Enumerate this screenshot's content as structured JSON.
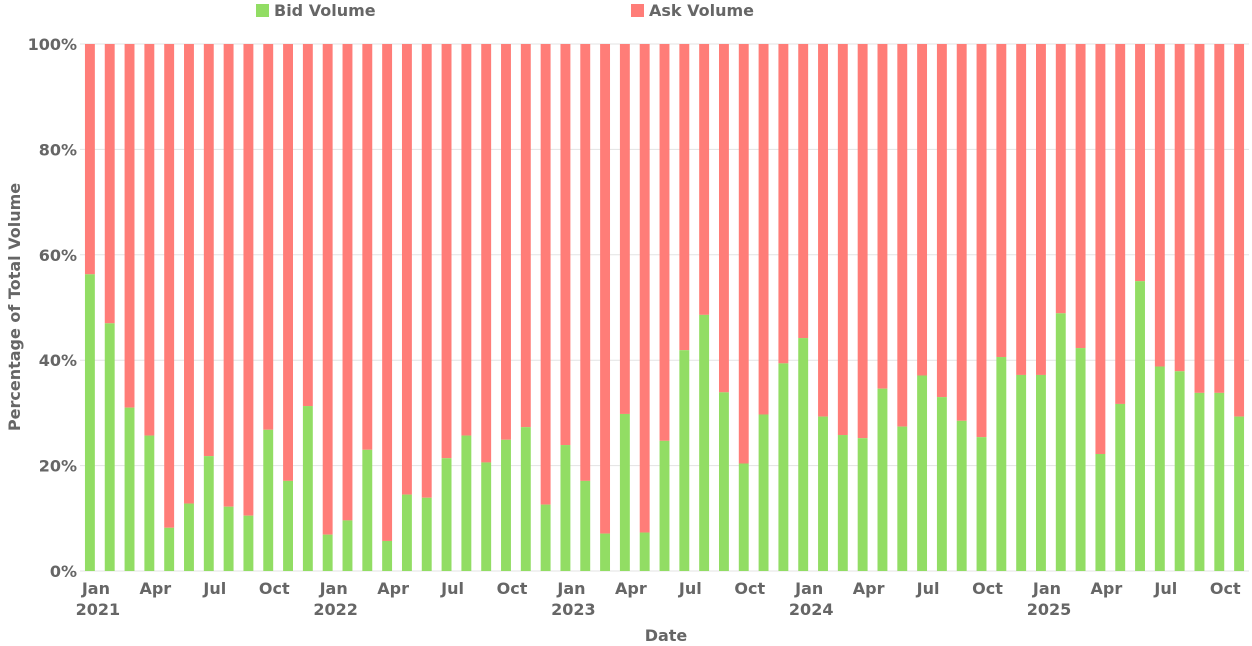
{
  "colors": {
    "bid": "#92dd64",
    "ask": "#ff7d78",
    "grid": "#e3e3e3",
    "text": "#666666"
  },
  "chart_data": {
    "type": "bar",
    "stacked": true,
    "percent": true,
    "title": "",
    "xlabel": "Date",
    "ylabel": "Percentage of Total Volume",
    "ylim": [
      0,
      100
    ],
    "yticks": [
      "0%",
      "20%",
      "40%",
      "60%",
      "80%",
      "100%"
    ],
    "legend": [
      "Bid Volume",
      "Ask Volume"
    ],
    "legend_position": "top",
    "categories": [
      "2021-01",
      "2021-02",
      "2021-03",
      "2021-04",
      "2021-05",
      "2021-06",
      "2021-07",
      "2021-08",
      "2021-09",
      "2021-10",
      "2021-11",
      "2021-12",
      "2022-01",
      "2022-02",
      "2022-03",
      "2022-04",
      "2022-05",
      "2022-06",
      "2022-07",
      "2022-08",
      "2022-09",
      "2022-10",
      "2022-11",
      "2022-12",
      "2023-01",
      "2023-02",
      "2023-03",
      "2023-04",
      "2023-05",
      "2023-06",
      "2023-07",
      "2023-08",
      "2023-09",
      "2023-10",
      "2023-11",
      "2023-12",
      "2024-01",
      "2024-02",
      "2024-03",
      "2024-04",
      "2024-05",
      "2024-06",
      "2024-07",
      "2024-08",
      "2024-09",
      "2024-10",
      "2024-11",
      "2024-12",
      "2025-01",
      "2025-02",
      "2025-03",
      "2025-04",
      "2025-05",
      "2025-06",
      "2025-07",
      "2025-08",
      "2025-09",
      "2025-10",
      "2025-11"
    ],
    "series": [
      {
        "name": "Bid Volume",
        "values": [
          56.3,
          47,
          31,
          25.7,
          8.2,
          12.8,
          21.8,
          12.2,
          10.5,
          26.8,
          17.1,
          31.3,
          6.9,
          9.6,
          23,
          5.7,
          14.5,
          13.9,
          21.4,
          25.7,
          20.6,
          24.9,
          27.3,
          12.6,
          23.9,
          17.1,
          7.1,
          29.8,
          7.3,
          24.7,
          41.9,
          48.6,
          33.9,
          20.4,
          29.7,
          39.4,
          44.2,
          29.3,
          25.8,
          25.2,
          34.6,
          27.4,
          37.1,
          33,
          28.5,
          25.4,
          40.6,
          37.2,
          37.2,
          48.9,
          42.3,
          22.2,
          31.7,
          55,
          38.8,
          37.9,
          33.8,
          33.8,
          29.3
        ]
      },
      {
        "name": "Ask Volume",
        "values": [
          43.7,
          53,
          69,
          74.3,
          91.8,
          87.2,
          78.2,
          87.8,
          89.5,
          73.2,
          82.9,
          68.7,
          93.1,
          90.4,
          77,
          94.3,
          85.5,
          86.1,
          78.6,
          74.3,
          79.4,
          75.1,
          72.7,
          87.4,
          76.1,
          82.9,
          92.9,
          70.2,
          92.7,
          75.3,
          58.1,
          51.4,
          66.1,
          79.6,
          70.3,
          60.6,
          55.8,
          70.7,
          74.2,
          74.8,
          65.4,
          72.6,
          62.9,
          67,
          71.5,
          74.6,
          59.4,
          62.8,
          62.8,
          51.1,
          57.7,
          77.8,
          68.3,
          45,
          61.2,
          62.1,
          66.2,
          66.2,
          70.7
        ]
      }
    ],
    "x_ticks": [
      {
        "index": 0,
        "month": "Jan",
        "year": "2021"
      },
      {
        "index": 3,
        "month": "Apr",
        "year": ""
      },
      {
        "index": 6,
        "month": "Jul",
        "year": ""
      },
      {
        "index": 9,
        "month": "Oct",
        "year": ""
      },
      {
        "index": 12,
        "month": "Jan",
        "year": "2022"
      },
      {
        "index": 15,
        "month": "Apr",
        "year": ""
      },
      {
        "index": 18,
        "month": "Jul",
        "year": ""
      },
      {
        "index": 21,
        "month": "Oct",
        "year": ""
      },
      {
        "index": 24,
        "month": "Jan",
        "year": "2023"
      },
      {
        "index": 27,
        "month": "Apr",
        "year": ""
      },
      {
        "index": 30,
        "month": "Jul",
        "year": ""
      },
      {
        "index": 33,
        "month": "Oct",
        "year": ""
      },
      {
        "index": 36,
        "month": "Jan",
        "year": "2024"
      },
      {
        "index": 39,
        "month": "Apr",
        "year": ""
      },
      {
        "index": 42,
        "month": "Jul",
        "year": ""
      },
      {
        "index": 45,
        "month": "Oct",
        "year": ""
      },
      {
        "index": 48,
        "month": "Jan",
        "year": "2025"
      },
      {
        "index": 51,
        "month": "Apr",
        "year": ""
      },
      {
        "index": 54,
        "month": "Jul",
        "year": ""
      },
      {
        "index": 57,
        "month": "Oct",
        "year": ""
      }
    ]
  }
}
